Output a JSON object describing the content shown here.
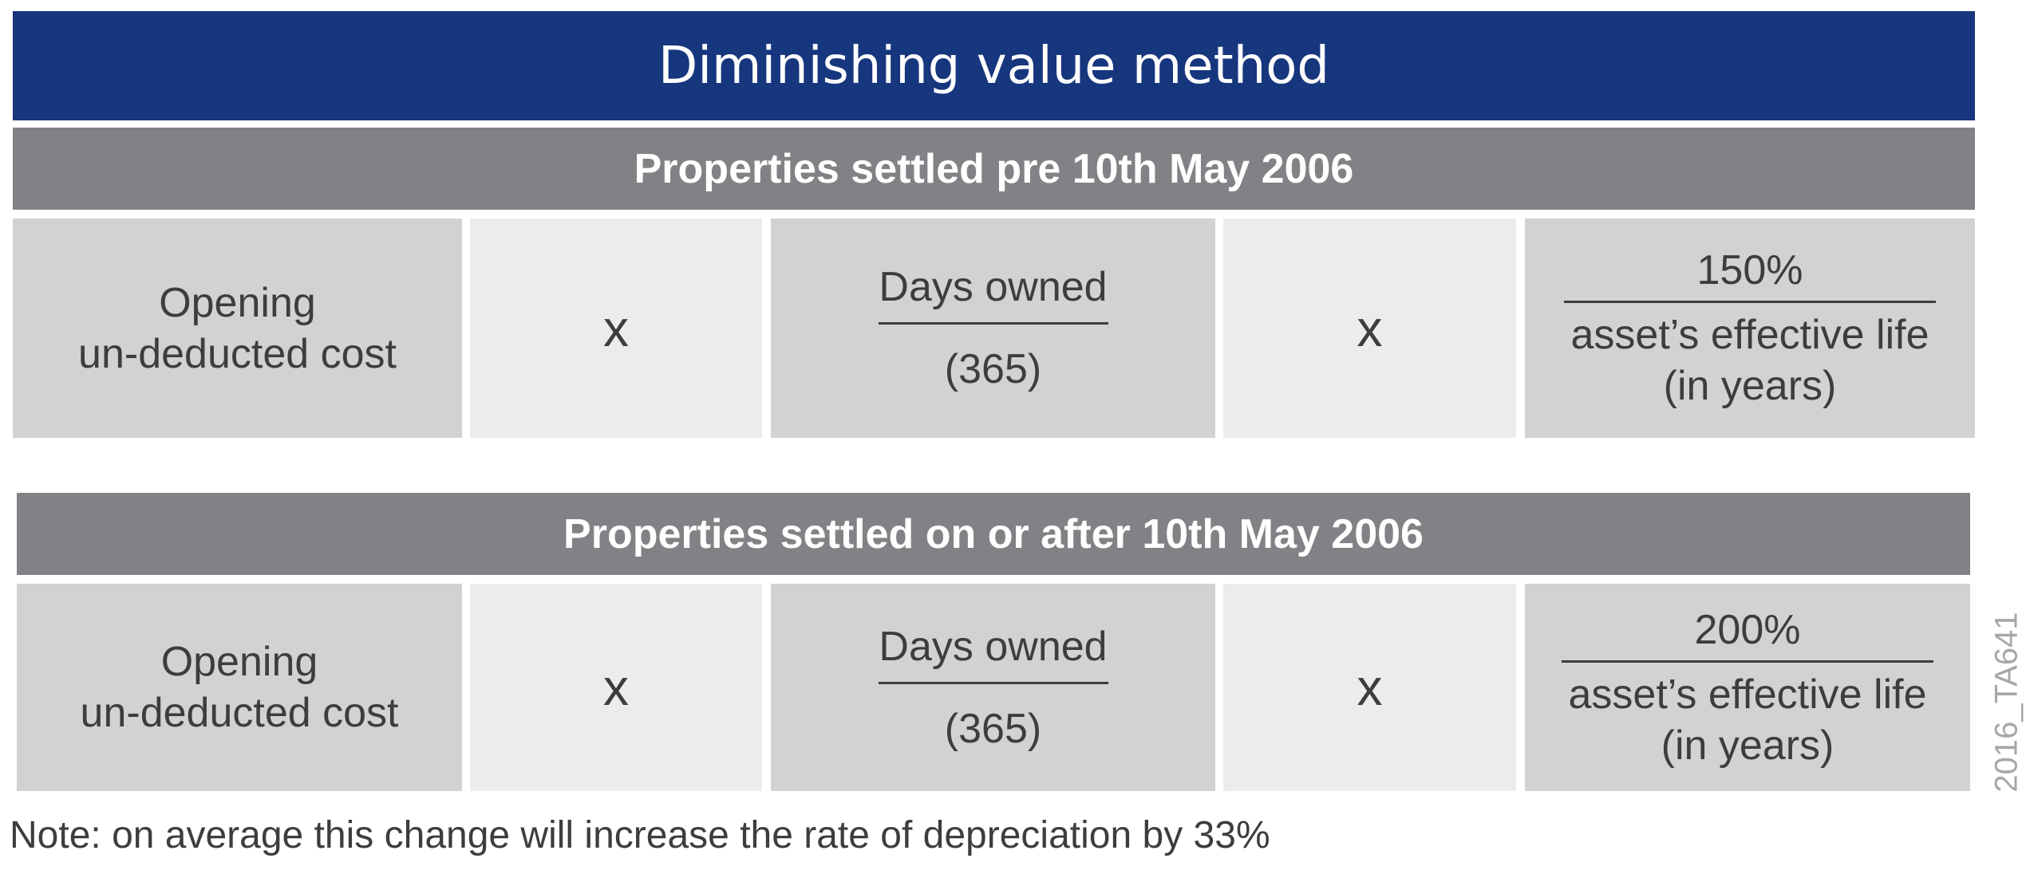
{
  "title": "Diminishing value method",
  "sections": [
    {
      "heading": "Properties settled pre 10th May 2006",
      "opening_line1": "Opening",
      "opening_line2": "un-deducted cost",
      "times1": "x",
      "days_numerator": "Days owned",
      "days_denominator": "(365)",
      "times2": "x",
      "rate_numerator": "150%",
      "rate_denominator_line1": "asset’s effective life",
      "rate_denominator_line2": "(in years)"
    },
    {
      "heading": "Properties settled on or after 10th May 2006",
      "opening_line1": "Opening",
      "opening_line2": "un-deducted cost",
      "times1": "x",
      "days_numerator": "Days owned",
      "days_denominator": "(365)",
      "times2": "x",
      "rate_numerator": "200%",
      "rate_denominator_line1": "asset’s effective life",
      "rate_denominator_line2": "(in years)"
    }
  ],
  "note": "Note: on average this change will increase the rate of depreciation by 33%",
  "watermark": "2016_TA641",
  "colors": {
    "title_bar": "#16367d",
    "section_bar": "#818285",
    "cell_dark": "#d1d2d4",
    "cell_light": "#ececec",
    "text": "#3d3d3f"
  }
}
